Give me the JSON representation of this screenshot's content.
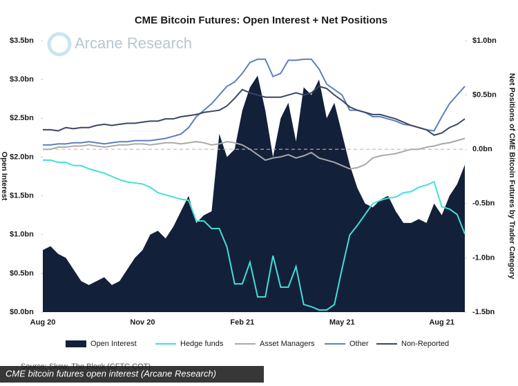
{
  "chart_data": {
    "type": "area_line",
    "title": "CME Bitcoin Futures: Open Interest + Net Positions",
    "watermark": "Arcane Research",
    "ylabel": "Open Interest",
    "y2label": "Net Positions of CME Bitcoin Futures by Trader Category",
    "source": "Source: Skew, The Block (CFTC COT)",
    "caption": "CME bitcoin futures open interest (Arcane Research)",
    "categories": [
      "Aug 20",
      null,
      null,
      null,
      null,
      null,
      null,
      null,
      null,
      null,
      null,
      null,
      null,
      "Nov 20",
      null,
      null,
      null,
      null,
      null,
      null,
      null,
      null,
      null,
      null,
      null,
      null,
      "Feb 21",
      null,
      null,
      null,
      null,
      null,
      null,
      null,
      null,
      null,
      null,
      null,
      null,
      "May 21",
      null,
      null,
      null,
      null,
      null,
      null,
      null,
      null,
      null,
      null,
      null,
      null,
      "Aug 21",
      null,
      null,
      null
    ],
    "ylim": [
      0,
      3.5
    ],
    "yticks": [
      {
        "value": 0,
        "label": "$0.0bn"
      },
      {
        "value": 0.5,
        "label": "$0.5bn"
      },
      {
        "value": 1,
        "label": "$1.0bn"
      },
      {
        "value": 1.5,
        "label": "$1.5bn"
      },
      {
        "value": 2,
        "label": "$2.0bn"
      },
      {
        "value": 2.5,
        "label": "$2.5bn"
      },
      {
        "value": 3,
        "label": "$3.0bn"
      },
      {
        "value": 3.5,
        "label": "$3.5bn"
      }
    ],
    "y2lim": [
      -1.5,
      1.0
    ],
    "y2ticks": [
      {
        "value": -1.5,
        "label": "-1.5bn"
      },
      {
        "value": -1,
        "label": "-1.0bn"
      },
      {
        "value": -0.5,
        "label": "-0.5bn"
      },
      {
        "value": 0,
        "label": "0.0bn"
      },
      {
        "value": 0.5,
        "label": "$0.5bn"
      },
      {
        "value": 1,
        "label": "$1.0bn"
      }
    ],
    "series": [
      {
        "name": "Open Interest",
        "kind": "area",
        "color": "#13203a",
        "values": [
          0.8,
          0.85,
          0.75,
          0.7,
          0.55,
          0.4,
          0.35,
          0.4,
          0.45,
          0.35,
          0.4,
          0.55,
          0.7,
          0.8,
          1.0,
          1.05,
          0.95,
          1.1,
          1.3,
          1.5,
          1.15,
          1.25,
          1.3,
          2.3,
          2.0,
          2.1,
          2.6,
          2.9,
          3.05,
          2.6,
          2.0,
          2.5,
          2.7,
          2.2,
          2.9,
          2.8,
          3.0,
          2.5,
          2.7,
          2.3,
          1.9,
          1.6,
          1.4,
          1.35,
          1.45,
          1.5,
          1.3,
          1.15,
          1.15,
          1.2,
          1.15,
          1.4,
          1.25,
          1.5,
          1.65,
          1.9
        ]
      },
      {
        "name": "Hedge funds",
        "kind": "line",
        "axis": "y2",
        "color": "#40e0d8",
        "values": [
          -0.1,
          -0.1,
          -0.12,
          -0.12,
          -0.15,
          -0.15,
          -0.18,
          -0.2,
          -0.22,
          -0.25,
          -0.28,
          -0.3,
          -0.31,
          -0.32,
          -0.35,
          -0.4,
          -0.42,
          -0.44,
          -0.46,
          -0.47,
          -0.66,
          -0.66,
          -0.73,
          -0.73,
          -0.9,
          -1.24,
          -1.24,
          -1.04,
          -1.36,
          -1.36,
          -0.98,
          -1.27,
          -1.27,
          -1.08,
          -1.43,
          -1.45,
          -1.48,
          -1.48,
          -1.43,
          -1.1,
          -0.79,
          -0.7,
          -0.6,
          -0.5,
          -0.47,
          -0.45,
          -0.44,
          -0.4,
          -0.39,
          -0.35,
          -0.33,
          -0.3,
          -0.53,
          -0.55,
          -0.6,
          -0.78
        ]
      },
      {
        "name": "Asset Managers",
        "kind": "line",
        "axis": "y2",
        "color": "#a8a8a8",
        "values": [
          0.0,
          0.0,
          0.02,
          0.02,
          0.03,
          0.03,
          0.04,
          0.03,
          0.02,
          0.03,
          0.04,
          0.04,
          0.05,
          0.05,
          0.04,
          0.05,
          0.06,
          0.06,
          0.05,
          0.06,
          0.07,
          0.06,
          0.04,
          0.05,
          0.07,
          0.06,
          0.04,
          0.0,
          -0.05,
          -0.1,
          -0.08,
          -0.07,
          -0.05,
          -0.08,
          -0.06,
          -0.03,
          -0.08,
          -0.1,
          -0.12,
          -0.15,
          -0.18,
          -0.17,
          -0.14,
          -0.08,
          -0.06,
          -0.05,
          -0.04,
          -0.02,
          0.0,
          0.0,
          0.02,
          0.03,
          0.05,
          0.06,
          0.08,
          0.1
        ]
      },
      {
        "name": "Other",
        "kind": "line",
        "axis": "y2",
        "color": "#5b7fbf",
        "values": [
          0.04,
          0.04,
          0.05,
          0.05,
          0.06,
          0.06,
          0.07,
          0.06,
          0.05,
          0.06,
          0.07,
          0.07,
          0.08,
          0.08,
          0.08,
          0.09,
          0.1,
          0.12,
          0.14,
          0.2,
          0.3,
          0.36,
          0.42,
          0.5,
          0.58,
          0.62,
          0.7,
          0.8,
          0.83,
          0.83,
          0.67,
          0.7,
          0.82,
          0.82,
          0.83,
          0.83,
          0.74,
          0.6,
          0.55,
          0.5,
          0.36,
          0.36,
          0.34,
          0.3,
          0.3,
          0.28,
          0.26,
          0.23,
          0.22,
          0.2,
          0.18,
          0.17,
          0.3,
          0.42,
          0.5,
          0.58
        ]
      },
      {
        "name": "Non-Reported",
        "kind": "line",
        "axis": "y2",
        "color": "#3a4760",
        "values": [
          0.18,
          0.18,
          0.17,
          0.2,
          0.19,
          0.2,
          0.2,
          0.22,
          0.23,
          0.22,
          0.23,
          0.24,
          0.24,
          0.25,
          0.26,
          0.26,
          0.28,
          0.28,
          0.3,
          0.31,
          0.32,
          0.34,
          0.35,
          0.36,
          0.4,
          0.47,
          0.55,
          0.52,
          0.5,
          0.48,
          0.48,
          0.48,
          0.5,
          0.52,
          0.5,
          0.52,
          0.58,
          0.56,
          0.5,
          0.45,
          0.39,
          0.36,
          0.34,
          0.32,
          0.32,
          0.3,
          0.28,
          0.25,
          0.22,
          0.2,
          0.18,
          0.13,
          0.15,
          0.2,
          0.23,
          0.28
        ]
      }
    ],
    "legend": "bottom"
  }
}
